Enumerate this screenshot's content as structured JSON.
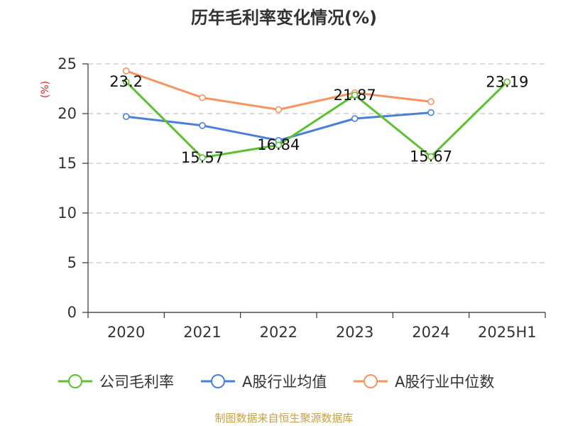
{
  "chart_data": {
    "type": "line",
    "title": "历年毛利率变化情况(%)",
    "ylabel": "(%)",
    "categories": [
      "2020",
      "2021",
      "2022",
      "2023",
      "2024",
      "2025H1"
    ],
    "ylim": [
      0,
      25
    ],
    "yticks": [
      0,
      5,
      10,
      15,
      20,
      25
    ],
    "grid": true,
    "legend_position": "bottom",
    "series": [
      {
        "name": "公司毛利率",
        "color": "#5cc12e",
        "values": [
          23.2,
          15.57,
          16.84,
          21.87,
          15.67,
          23.19
        ],
        "labels": [
          "23.2",
          "15.57",
          "16.84",
          "21.87",
          "15.67",
          "23.19"
        ]
      },
      {
        "name": "A股行业均值",
        "color": "#4a7fd8",
        "values": [
          19.7,
          18.8,
          17.3,
          19.5,
          20.1,
          null
        ]
      },
      {
        "name": "A股行业中位数",
        "color": "#f79460",
        "values": [
          24.3,
          21.6,
          20.4,
          22.1,
          21.2,
          null
        ]
      }
    ],
    "source": "制图数据来自恒生聚源数据库",
    "ylabel_color": "#e02020",
    "source_color": "#c8a040"
  }
}
